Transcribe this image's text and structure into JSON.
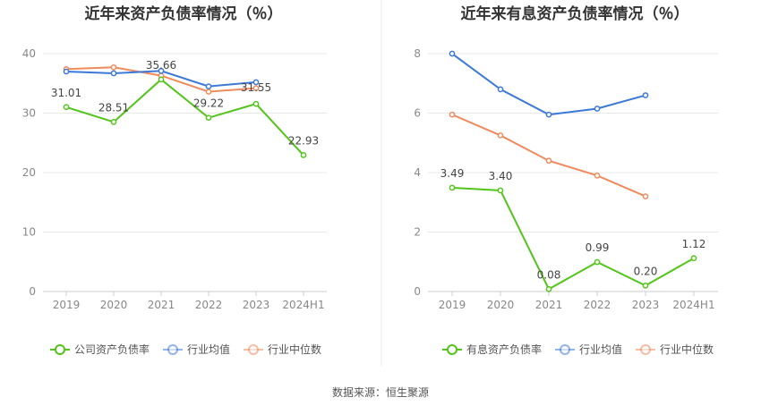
{
  "source": "数据来源：恒生聚源",
  "chart_data": [
    {
      "type": "line",
      "title": "近年来资产负债率情况（％）",
      "categories": [
        "2019",
        "2020",
        "2021",
        "2022",
        "2023",
        "2024H1"
      ],
      "ylim": [
        0,
        40
      ],
      "yticks": [
        "0",
        "10",
        "20",
        "30",
        "40"
      ],
      "grid": true,
      "legend_position": "bottom",
      "series": [
        {
          "name": "公司资产负债率",
          "color": "#52c41a",
          "values": [
            31.01,
            28.51,
            35.66,
            29.22,
            31.55,
            22.93
          ],
          "labels": [
            "31.01",
            "28.51",
            "35.66",
            "29.22",
            "31.55",
            "22.93"
          ]
        },
        {
          "name": "行业均值",
          "color": "#3b78d8",
          "values": [
            37.0,
            36.7,
            37.1,
            34.5,
            35.2,
            null
          ]
        },
        {
          "name": "行业中位数",
          "color": "#f08a5d",
          "values": [
            37.4,
            37.7,
            36.3,
            33.6,
            34.2,
            null
          ]
        }
      ]
    },
    {
      "type": "line",
      "title": "近年来有息资产负债率情况（％）",
      "categories": [
        "2019",
        "2020",
        "2021",
        "2022",
        "2023",
        "2024H1"
      ],
      "ylim": [
        0,
        8
      ],
      "yticks": [
        "0",
        "2",
        "4",
        "6",
        "8"
      ],
      "grid": true,
      "legend_position": "bottom",
      "series": [
        {
          "name": "有息资产负债率",
          "color": "#52c41a",
          "values": [
            3.49,
            3.4,
            0.08,
            0.99,
            0.2,
            1.12
          ],
          "labels": [
            "3.49",
            "3.40",
            "0.08",
            "0.99",
            "0.20",
            "1.12"
          ]
        },
        {
          "name": "行业均值",
          "color": "#3b78d8",
          "values": [
            8.0,
            6.8,
            5.95,
            6.15,
            6.6,
            null
          ]
        },
        {
          "name": "行业中位数",
          "color": "#f08a5d",
          "values": [
            5.95,
            5.25,
            4.4,
            3.9,
            3.2,
            null
          ]
        }
      ]
    }
  ]
}
